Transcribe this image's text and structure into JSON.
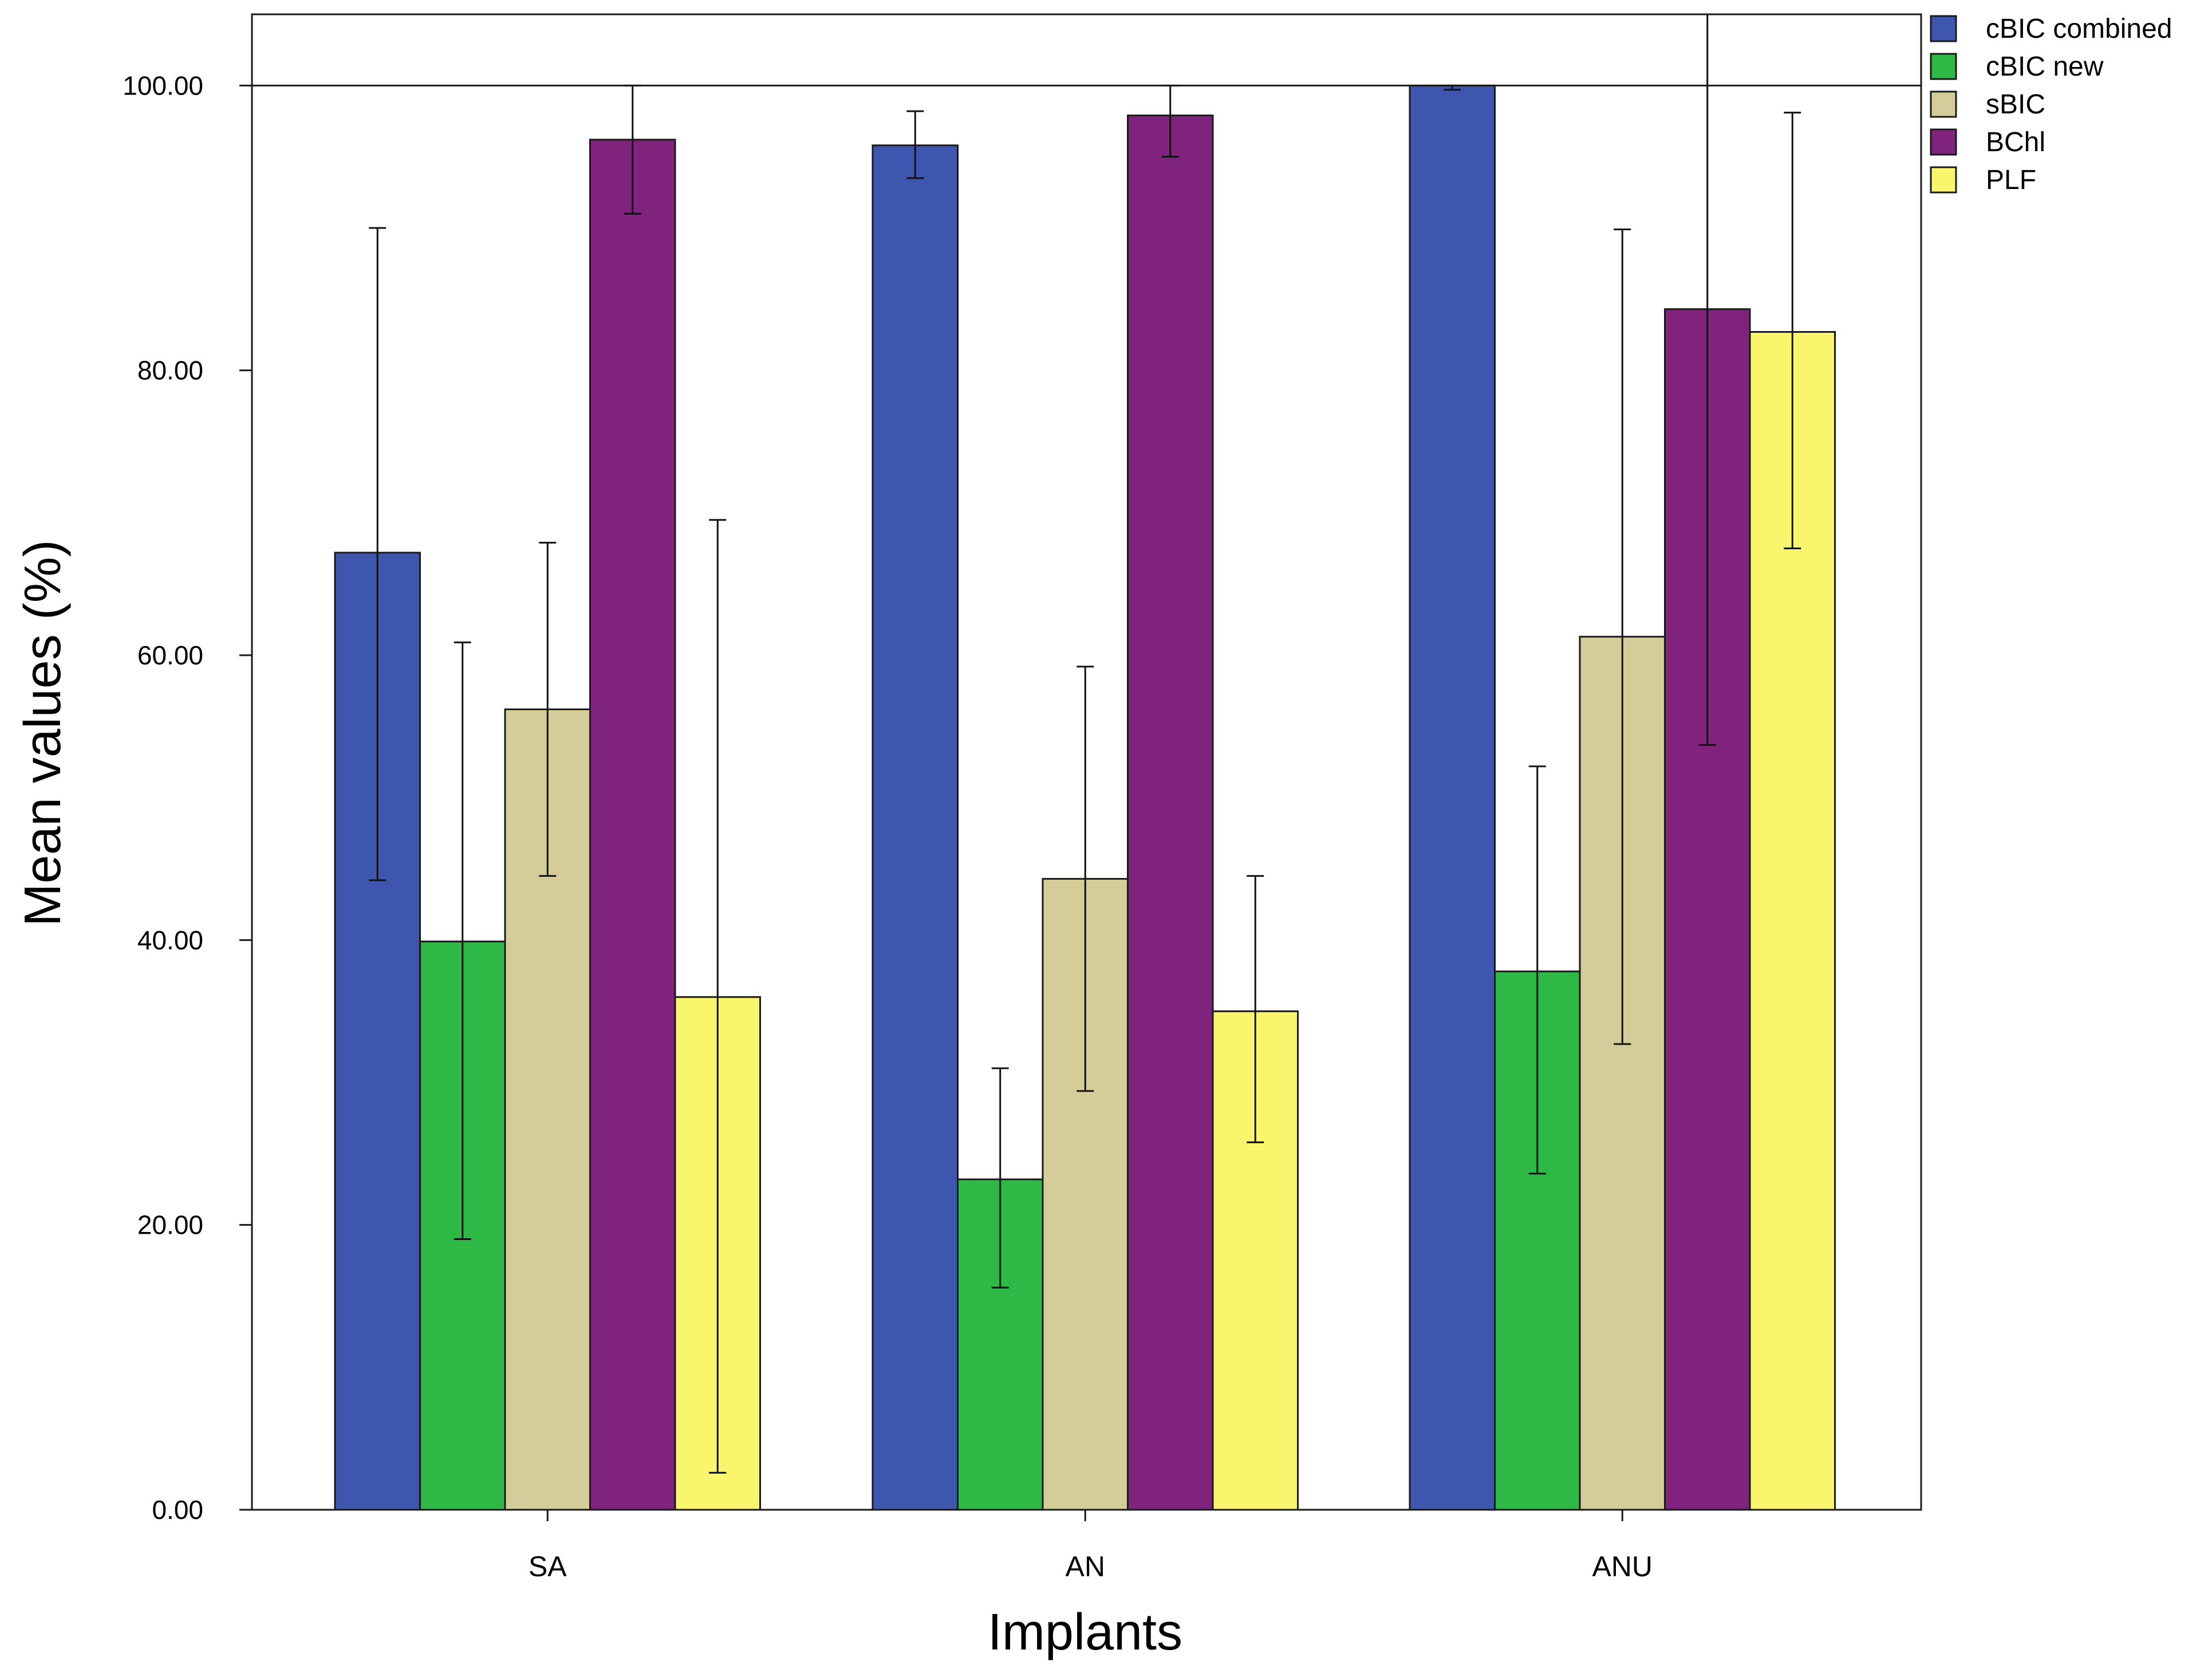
{
  "chart_data": {
    "type": "bar",
    "title": "",
    "xlabel": "Implants",
    "ylabel": "Mean values (%)",
    "categories": [
      "SA",
      "AN",
      "ANU"
    ],
    "ylim": [
      0,
      105
    ],
    "reference_line": 100,
    "yticks": [
      0,
      20,
      40,
      60,
      80,
      100
    ],
    "ytick_labels": [
      "0.00",
      "20.00",
      "40.00",
      "60.00",
      "80.00",
      "100.00"
    ],
    "grid": false,
    "legend_position": "top-right",
    "series": [
      {
        "name": "cBIC combined",
        "color": "#3f56ae",
        "values": [
          67.2,
          95.8,
          100.0
        ],
        "error_low": [
          44.2,
          93.5,
          99.7
        ],
        "error_high": [
          90.0,
          98.2,
          100.0
        ]
      },
      {
        "name": "cBIC new",
        "color": "#2eb845",
        "values": [
          39.9,
          23.2,
          37.8
        ],
        "error_low": [
          19.0,
          15.6,
          23.6
        ],
        "error_high": [
          60.9,
          31.0,
          52.2
        ]
      },
      {
        "name": "sBIC",
        "color": "#d4cd9a",
        "values": [
          56.2,
          44.3,
          61.3
        ],
        "error_low": [
          44.5,
          29.4,
          32.7
        ],
        "error_high": [
          67.9,
          59.2,
          89.9
        ]
      },
      {
        "name": "BChl",
        "color": "#80237c",
        "values": [
          96.2,
          97.9,
          84.3
        ],
        "error_low": [
          91.0,
          95.0,
          53.7
        ],
        "error_high": [
          100.0,
          100.0,
          105.0
        ]
      },
      {
        "name": "PLF",
        "color": "#f9f56c",
        "values": [
          36.0,
          35.0,
          82.7
        ],
        "error_low": [
          2.6,
          25.8,
          67.5
        ],
        "error_high": [
          69.5,
          44.5,
          98.1
        ]
      }
    ]
  }
}
